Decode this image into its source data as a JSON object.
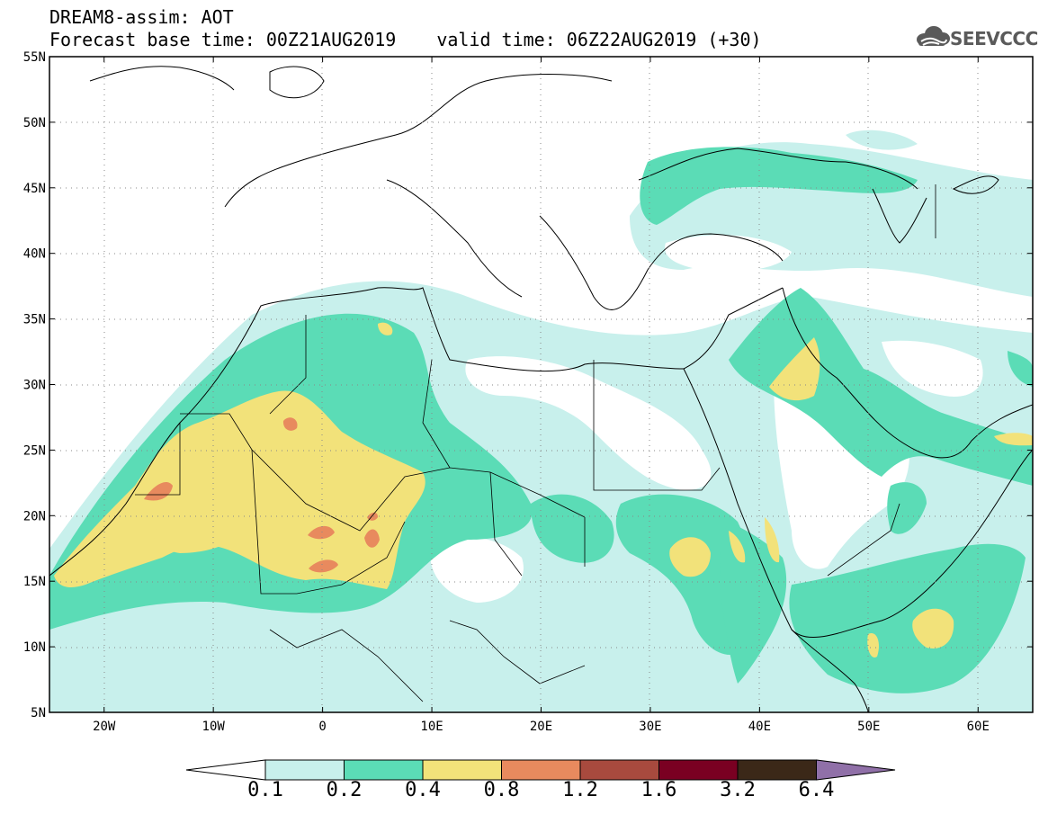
{
  "header": {
    "title_line1": "DREAM8-assim: AOT",
    "forecast_base": "Forecast base time: 00Z21AUG2019",
    "valid_time": "valid time: 06Z22AUG2019 (+30)",
    "logo_text": "SEEVCCC",
    "logo_icon": "cloud-icon"
  },
  "map": {
    "lon_range": [
      -25,
      65
    ],
    "lat_range": [
      5,
      55
    ],
    "lon_ticks": [
      "20W",
      "10W",
      "0",
      "10E",
      "20E",
      "30E",
      "40E",
      "50E",
      "60E"
    ],
    "lat_ticks": [
      "55N",
      "50N",
      "45N",
      "40N",
      "35N",
      "30N",
      "25N",
      "20N",
      "15N",
      "10N",
      "5N"
    ],
    "grid": "dotted",
    "variable": "AOT"
  },
  "colorbar": {
    "labels": [
      "0.1",
      "0.2",
      "0.4",
      "0.8",
      "1.2",
      "1.6",
      "3.2",
      "6.4"
    ],
    "colors": [
      "#c8f0ec",
      "#5bdcb6",
      "#f2e27a",
      "#e88a5e",
      "#a84a3e",
      "#7a0022",
      "#3b2818",
      "#9070a8"
    ],
    "under_color": "#ffffff"
  }
}
